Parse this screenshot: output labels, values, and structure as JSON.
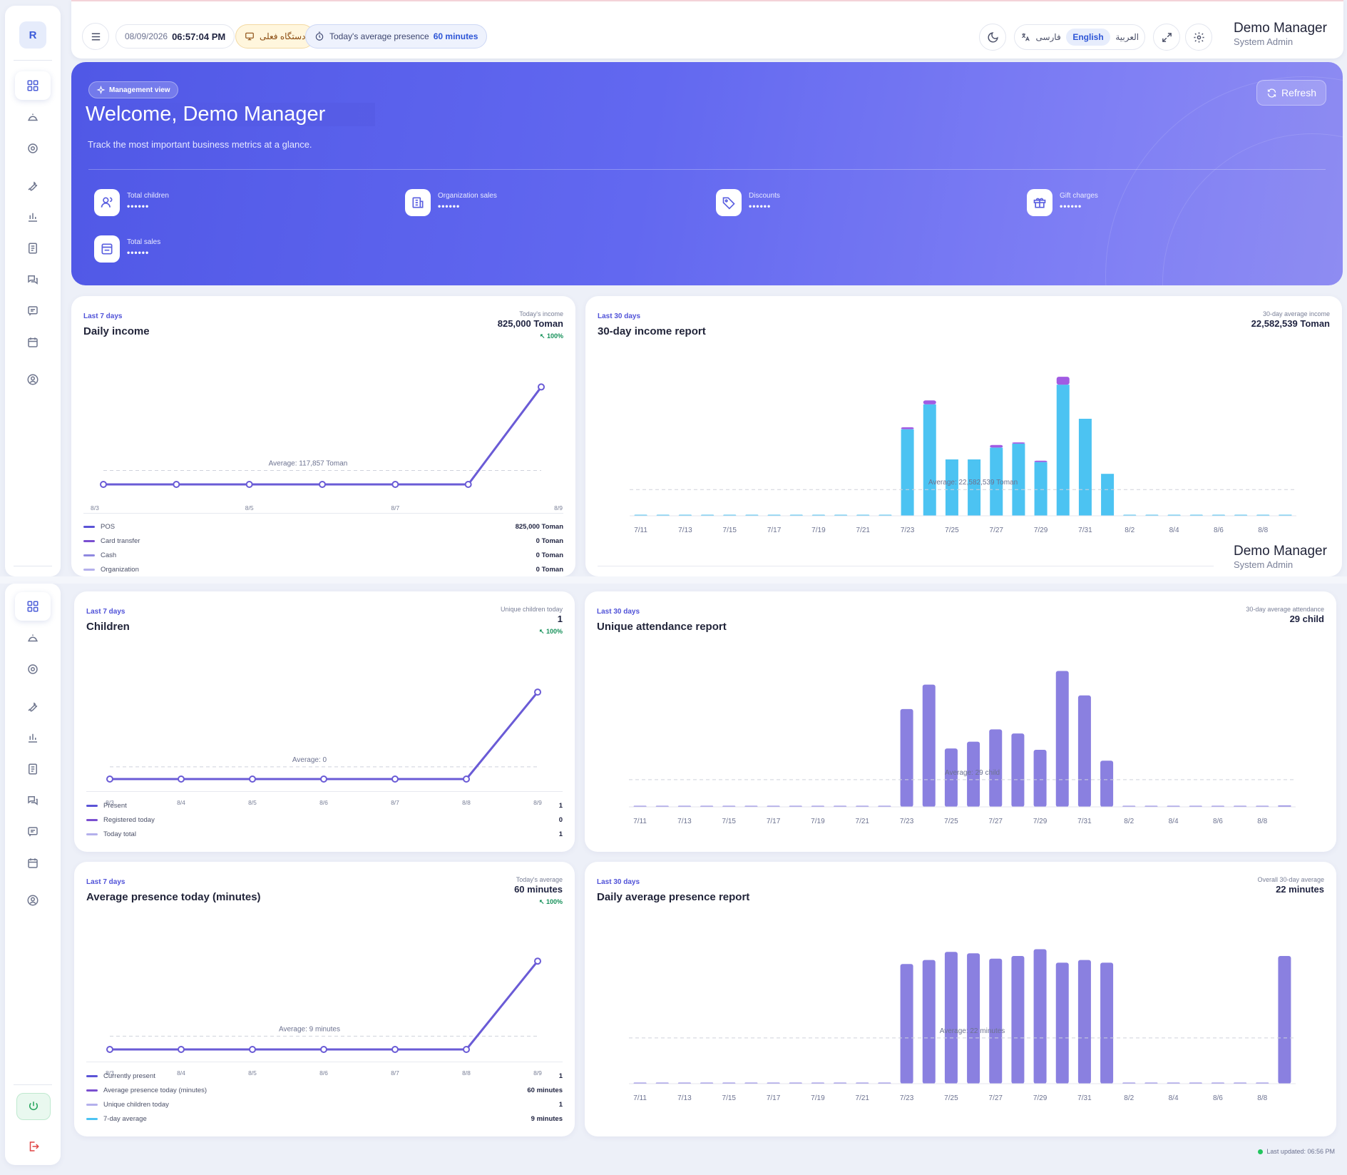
{
  "app": {
    "logo_letter": "R",
    "last_updated": "Last updated: 06:56 PM"
  },
  "topbar": {
    "date": "08/09/2026",
    "time": "06:57:04 PM",
    "device": "دستگاه فعلی",
    "presence_label": "Today's average presence",
    "presence_value": "60 minutes",
    "languages": [
      "فارسی",
      "English",
      "العربية"
    ],
    "active_language": "English",
    "user_name": "Demo Manager",
    "user_role": "System Admin"
  },
  "hero": {
    "badge": "Management view",
    "title": "Welcome, Demo Manager",
    "subtitle": "Track the most important business metrics at a glance.",
    "refresh": "Refresh",
    "metrics": [
      {
        "label": "Total children",
        "value": "••••••",
        "icon": "users-icon"
      },
      {
        "label": "Organization sales",
        "value": "••••••",
        "icon": "building-icon"
      },
      {
        "label": "Discounts",
        "value": "••••••",
        "icon": "tag-icon"
      },
      {
        "label": "Gift charges",
        "value": "••••••",
        "icon": "gift-icon"
      },
      {
        "label": "Total sales",
        "value": "••••••",
        "icon": "receipt-icon"
      }
    ]
  },
  "sidebar": {
    "icons": [
      "dashboard-icon",
      "reception-bell-icon",
      "settings-gear-icon",
      "wrench-icon",
      "bar-chart-icon",
      "ledger-icon",
      "chat-icon",
      "message-icon",
      "calendar-icon",
      "user-circle-icon"
    ],
    "bottom_icons": [
      "power-icon",
      "logout-icon"
    ]
  },
  "cards": {
    "daily_income": {
      "kicker": "Last 7 days",
      "title": "Daily income",
      "right_label": "Today's income",
      "right_value": "825,000 Toman",
      "change": "100%",
      "average_label": "Average: 117,857 Toman",
      "legend": [
        {
          "label": "POS",
          "value": "825,000 Toman",
          "color": "#5b53d6"
        },
        {
          "label": "Card transfer",
          "value": "0 Toman",
          "color": "#7a4fd0"
        },
        {
          "label": "Cash",
          "value": "0 Toman",
          "color": "#8f88e0"
        },
        {
          "label": "Organization",
          "value": "0 Toman",
          "color": "#b4b0ec"
        }
      ]
    },
    "income_30": {
      "kicker": "Last 30 days",
      "title": "30-day income report",
      "right_label": "30-day average income",
      "right_value": "22,582,539 Toman",
      "average_label": "Average: 22,582,539 Toman"
    },
    "children": {
      "kicker": "Last 7 days",
      "title": "Children",
      "right_label": "Unique children today",
      "right_value": "1",
      "change": "100%",
      "average_label": "Average: 0",
      "legend": [
        {
          "label": "Present",
          "value": "1",
          "color": "#5b53d6"
        },
        {
          "label": "Registered today",
          "value": "0",
          "color": "#7a4fd0"
        },
        {
          "label": "Today total",
          "value": "1",
          "color": "#b4b0ec"
        }
      ]
    },
    "attendance_30": {
      "kicker": "Last 30 days",
      "title": "Unique attendance report",
      "right_label": "30-day average attendance",
      "right_value": "29 child",
      "average_label": "Average: 29 child"
    },
    "presence_today": {
      "kicker": "Last 7 days",
      "title": "Average presence today (minutes)",
      "right_label": "Today's average",
      "right_value": "60 minutes",
      "change": "100%",
      "average_label": "Average: 9 minutes",
      "legend": [
        {
          "label": "Currently present",
          "value": "1",
          "color": "#5b53d6"
        },
        {
          "label": "Average presence today (minutes)",
          "value": "60 minutes",
          "color": "#7a4fd0"
        },
        {
          "label": "Unique children today",
          "value": "1",
          "color": "#b4b0ec"
        },
        {
          "label": "7-day average",
          "value": "9 minutes",
          "color": "#4cc3f2"
        }
      ]
    },
    "presence_30": {
      "kicker": "Last 30 days",
      "title": "Daily average presence report",
      "right_label": "Overall 30-day average",
      "right_value": "22 minutes",
      "average_label": "Average: 22 minutes"
    }
  },
  "chart_data": [
    {
      "id": "daily_income",
      "type": "line",
      "x": [
        "8/3",
        "8/4",
        "8/5",
        "8/6",
        "8/7",
        "8/8",
        "8/9"
      ],
      "x_tick_labels": [
        "8/3",
        "8/5",
        "8/7",
        "8/9"
      ],
      "values": [
        0,
        0,
        0,
        0,
        0,
        0,
        825000
      ],
      "average": 117857,
      "ylim": [
        0,
        900000
      ],
      "color": "#6a5bd6"
    },
    {
      "id": "income_30",
      "type": "bar",
      "stacked": true,
      "categories": [
        "7/11",
        "7/12",
        "7/13",
        "7/14",
        "7/15",
        "7/16",
        "7/17",
        "7/18",
        "7/19",
        "7/20",
        "7/21",
        "7/22",
        "7/23",
        "7/24",
        "7/25",
        "7/26",
        "7/27",
        "7/28",
        "7/29",
        "7/30",
        "7/31",
        "8/1",
        "8/2",
        "8/3",
        "8/4",
        "8/5",
        "8/6",
        "8/7",
        "8/8",
        "8/9"
      ],
      "x_tick_labels": [
        "7/11",
        "7/13",
        "7/15",
        "7/17",
        "7/19",
        "7/21",
        "7/23",
        "7/25",
        "7/27",
        "7/29",
        "7/31",
        "8/2",
        "8/4",
        "8/6",
        "8/8"
      ],
      "series": [
        {
          "values": [
            0,
            0,
            0,
            0,
            0,
            0,
            0,
            0,
            0,
            0,
            0,
            0,
            66,
            85,
            43,
            43,
            52,
            55,
            41,
            100,
            74,
            32,
            0,
            0,
            0,
            0,
            0,
            0,
            0,
            0.8
          ],
          "color": "#4cc3f2"
        },
        {
          "values": [
            0,
            0,
            0,
            0,
            0,
            0,
            0,
            0,
            0,
            0,
            0,
            0,
            1.5,
            3,
            0,
            0,
            2,
            1,
            1,
            6,
            0,
            0,
            0,
            0,
            0,
            0,
            0,
            0,
            0,
            0
          ],
          "color": "#a15be3"
        }
      ],
      "average": 20,
      "ylim": [
        0,
        105
      ]
    },
    {
      "id": "children",
      "type": "line",
      "x": [
        "8/3",
        "8/4",
        "8/5",
        "8/6",
        "8/7",
        "8/8",
        "8/9"
      ],
      "values": [
        0,
        0,
        0,
        0,
        0,
        0,
        1
      ],
      "average": 0.14,
      "ylim": [
        0,
        1.05
      ],
      "color": "#6a5bd6"
    },
    {
      "id": "attendance_30",
      "type": "bar",
      "categories": [
        "7/11",
        "7/12",
        "7/13",
        "7/14",
        "7/15",
        "7/16",
        "7/17",
        "7/18",
        "7/19",
        "7/20",
        "7/21",
        "7/22",
        "7/23",
        "7/24",
        "7/25",
        "7/26",
        "7/27",
        "7/28",
        "7/29",
        "7/30",
        "7/31",
        "8/1",
        "8/2",
        "8/3",
        "8/4",
        "8/5",
        "8/6",
        "8/7",
        "8/8",
        "8/9"
      ],
      "x_tick_labels": [
        "7/11",
        "7/13",
        "7/15",
        "7/17",
        "7/19",
        "7/21",
        "7/23",
        "7/25",
        "7/27",
        "7/29",
        "7/31",
        "8/2",
        "8/4",
        "8/6",
        "8/8"
      ],
      "values": [
        0,
        0,
        0,
        0,
        0,
        0,
        0,
        0,
        0,
        0,
        0,
        0,
        72,
        90,
        43,
        48,
        57,
        54,
        42,
        100,
        82,
        34,
        0,
        0,
        0,
        0,
        0,
        0,
        0,
        1
      ],
      "average": 20,
      "ylim": [
        0,
        105
      ],
      "color": "#8a80e0"
    },
    {
      "id": "presence_today",
      "type": "line",
      "x": [
        "8/3",
        "8/4",
        "8/5",
        "8/6",
        "8/7",
        "8/8",
        "8/9"
      ],
      "values": [
        0,
        0,
        0,
        0,
        0,
        0,
        60
      ],
      "average": 9,
      "ylim": [
        0,
        63
      ],
      "color": "#6a5bd6"
    },
    {
      "id": "presence_30",
      "type": "bar",
      "categories": [
        "7/11",
        "7/12",
        "7/13",
        "7/14",
        "7/15",
        "7/16",
        "7/17",
        "7/18",
        "7/19",
        "7/20",
        "7/21",
        "7/22",
        "7/23",
        "7/24",
        "7/25",
        "7/26",
        "7/27",
        "7/28",
        "7/29",
        "7/30",
        "7/31",
        "8/1",
        "8/2",
        "8/3",
        "8/4",
        "8/5",
        "8/6",
        "8/7",
        "8/8",
        "8/9"
      ],
      "x_tick_labels": [
        "7/11",
        "7/13",
        "7/15",
        "7/17",
        "7/19",
        "7/21",
        "7/23",
        "7/25",
        "7/27",
        "7/29",
        "7/31",
        "8/2",
        "8/4",
        "8/6",
        "8/8"
      ],
      "values": [
        0,
        0,
        0,
        0,
        0,
        0,
        0,
        0,
        0,
        0,
        0,
        0,
        89,
        92,
        98,
        97,
        93,
        95,
        100,
        90,
        92,
        90,
        0,
        0,
        0,
        0,
        0,
        0,
        0,
        95
      ],
      "average": 34,
      "ylim": [
        0,
        104
      ],
      "color": "#8a80e0"
    }
  ]
}
